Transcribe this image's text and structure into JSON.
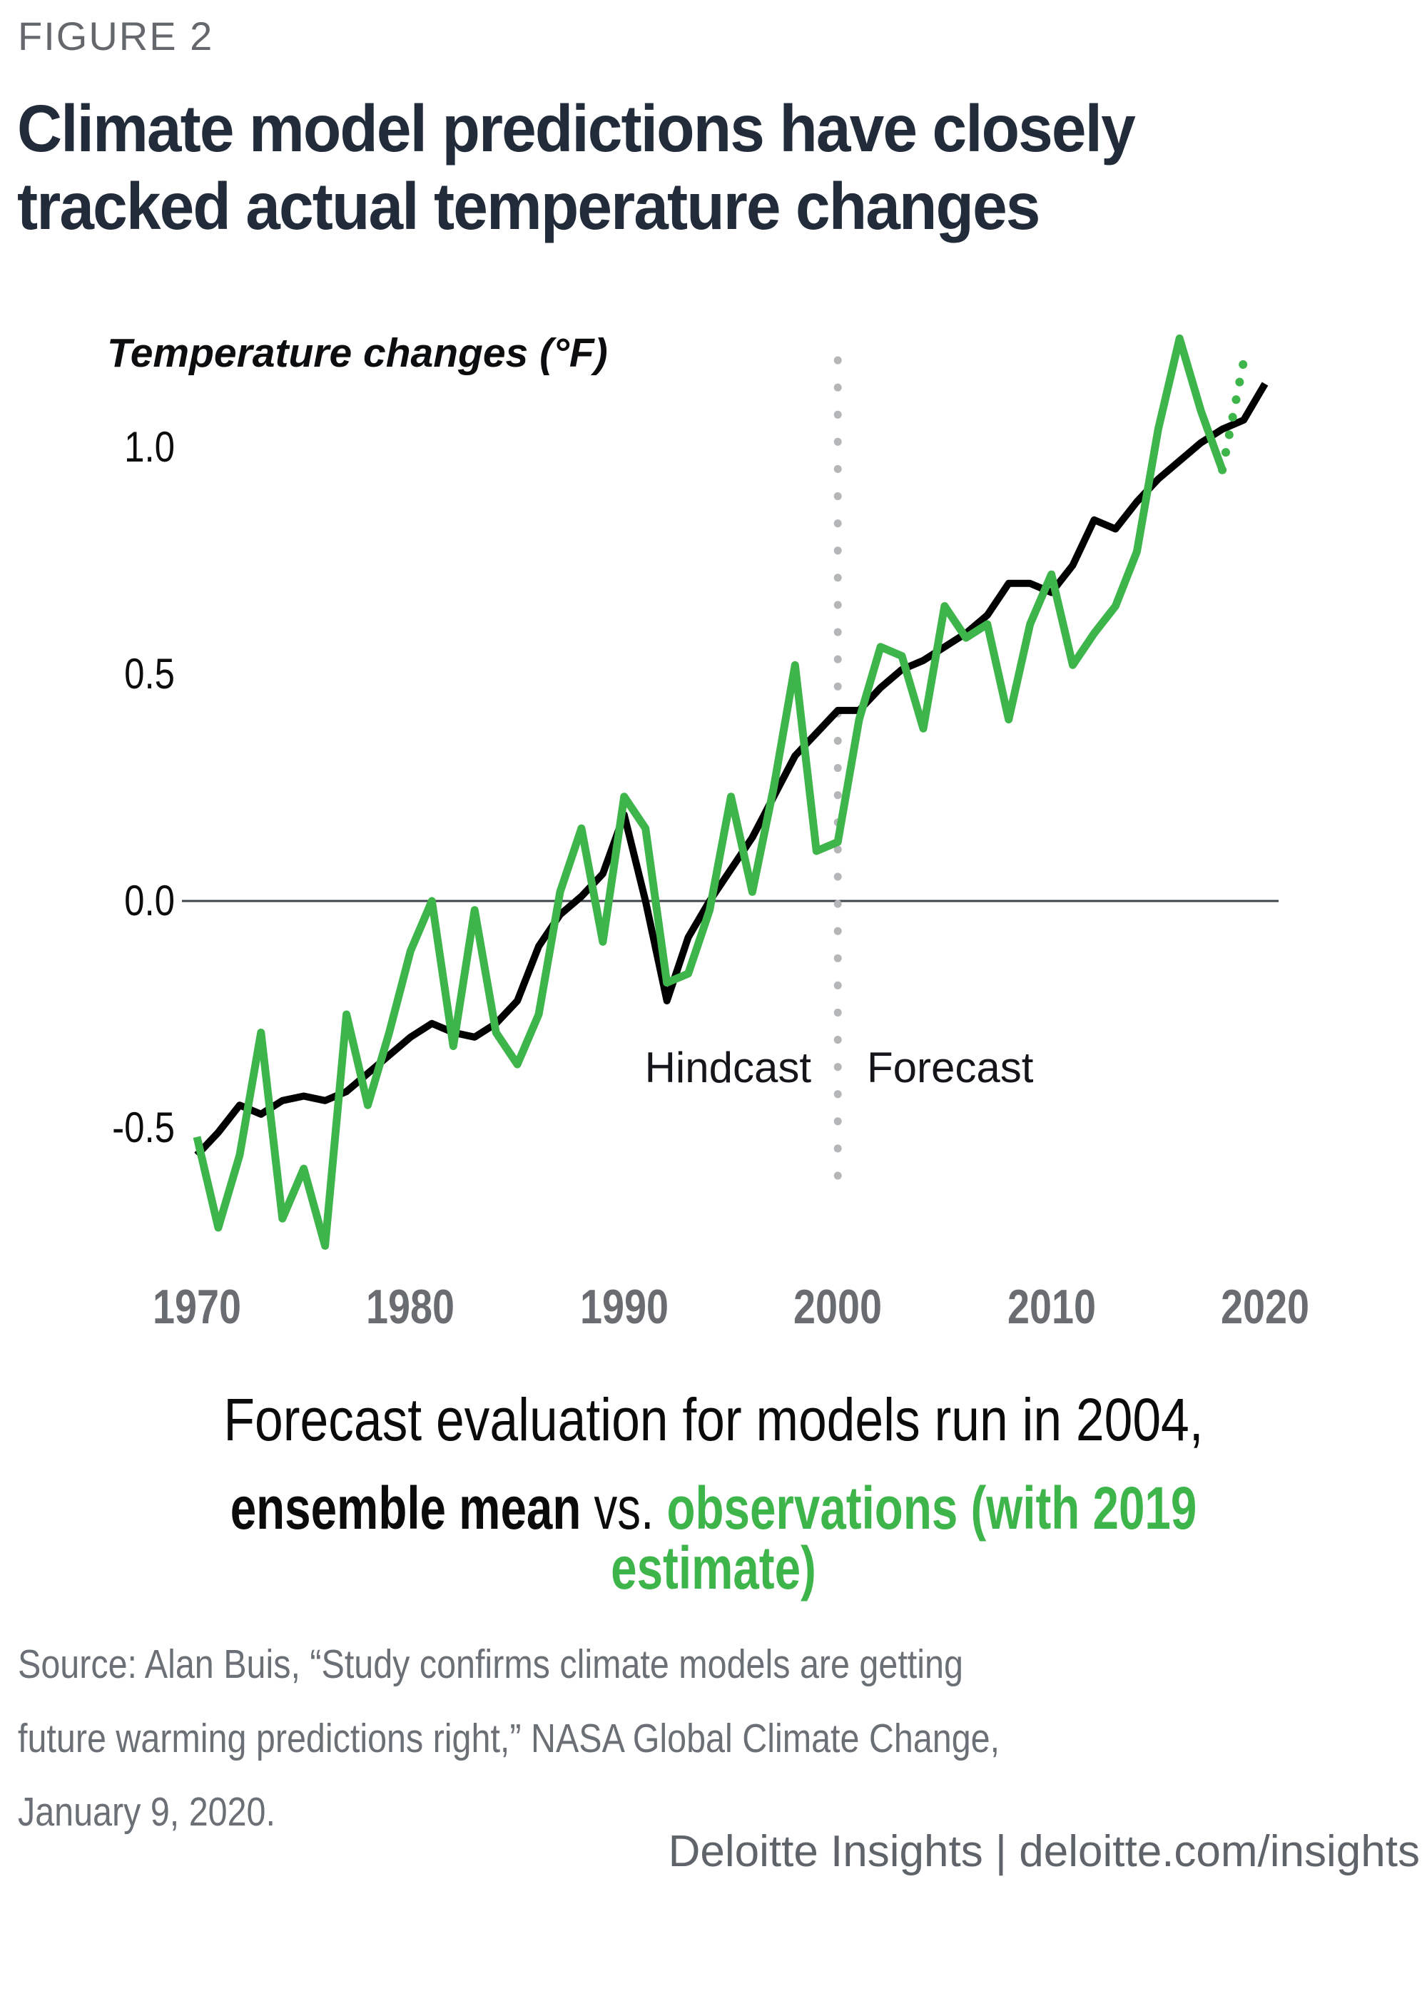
{
  "figure_label": "FIGURE 2",
  "title": {
    "line1": "Climate model predictions have closely",
    "line2": "tracked actual temperature changes"
  },
  "chart_data": {
    "type": "line",
    "ylabel": "Temperature changes (°F)",
    "xlim": [
      1969.5,
      2020.5
    ],
    "ylim": [
      -0.85,
      1.3
    ],
    "grid": "off",
    "y_tick_labels": [
      "1.0",
      "0.5",
      "0.0",
      "-0.5"
    ],
    "y_tick_values": [
      1.0,
      0.5,
      0.0,
      -0.5
    ],
    "x_tick_labels": [
      "1970",
      "1980",
      "1990",
      "2000",
      "2010",
      "2020"
    ],
    "divider_year": 2000,
    "annotations": {
      "hindcast": "Hindcast",
      "forecast": "Forecast"
    },
    "colors": {
      "ensemble_mean": "#000000",
      "observations": "#3eb54b",
      "zero_line": "#3f444c",
      "divider_dots": "#b4b6b8"
    },
    "series": [
      {
        "name": "ensemble mean",
        "color": "#000000",
        "style": "solid",
        "width": 10,
        "x": [
          1970,
          1971,
          1972,
          1973,
          1974,
          1975,
          1976,
          1977,
          1978,
          1979,
          1980,
          1981,
          1982,
          1983,
          1984,
          1985,
          1986,
          1987,
          1988,
          1989,
          1990,
          1991,
          1992,
          1993,
          1994,
          1995,
          1996,
          1997,
          1998,
          1999,
          2000,
          2001,
          2002,
          2003,
          2004,
          2005,
          2006,
          2007,
          2008,
          2009,
          2010,
          2011,
          2012,
          2013,
          2014,
          2015,
          2016,
          2017,
          2018,
          2019,
          2020
        ],
        "values": [
          -0.56,
          -0.51,
          -0.45,
          -0.47,
          -0.44,
          -0.43,
          -0.44,
          -0.42,
          -0.38,
          -0.34,
          -0.3,
          -0.27,
          -0.29,
          -0.3,
          -0.27,
          -0.22,
          -0.1,
          -0.03,
          0.01,
          0.06,
          0.19,
          0.0,
          -0.22,
          -0.08,
          0.0,
          0.07,
          0.14,
          0.23,
          0.32,
          0.37,
          0.42,
          0.42,
          0.47,
          0.51,
          0.53,
          0.56,
          0.59,
          0.63,
          0.7,
          0.7,
          0.68,
          0.74,
          0.84,
          0.82,
          0.88,
          0.93,
          0.97,
          1.01,
          1.04,
          1.06,
          1.14
        ]
      },
      {
        "name": "observations",
        "color": "#3eb54b",
        "style": "solid",
        "width": 11,
        "x": [
          1970,
          1971,
          1972,
          1973,
          1974,
          1975,
          1976,
          1977,
          1978,
          1979,
          1980,
          1981,
          1982,
          1983,
          1984,
          1985,
          1986,
          1987,
          1988,
          1989,
          1990,
          1991,
          1992,
          1993,
          1994,
          1995,
          1996,
          1997,
          1998,
          1999,
          2000,
          2001,
          2002,
          2003,
          2004,
          2005,
          2006,
          2007,
          2008,
          2009,
          2010,
          2011,
          2012,
          2013,
          2014,
          2015,
          2016,
          2017,
          2018
        ],
        "values": [
          -0.52,
          -0.72,
          -0.56,
          -0.29,
          -0.7,
          -0.59,
          -0.76,
          -0.25,
          -0.45,
          -0.29,
          -0.11,
          0.0,
          -0.32,
          -0.02,
          -0.29,
          -0.36,
          -0.25,
          0.02,
          0.16,
          -0.09,
          0.23,
          0.16,
          -0.18,
          -0.16,
          -0.02,
          0.23,
          0.02,
          0.25,
          0.52,
          0.11,
          0.13,
          0.4,
          0.56,
          0.54,
          0.38,
          0.65,
          0.58,
          0.61,
          0.4,
          0.61,
          0.72,
          0.52,
          0.59,
          0.65,
          0.77,
          1.04,
          1.24,
          1.08,
          0.95
        ]
      },
      {
        "name": "2019 estimate",
        "color": "#3eb54b",
        "style": "dotted",
        "width": 12,
        "x": [
          2018,
          2019
        ],
        "values": [
          0.95,
          1.19
        ]
      }
    ]
  },
  "caption": {
    "line1": "Forecast evaluation for models run in 2004,",
    "line2_bold": "ensemble mean",
    "line2_mid": " vs. ",
    "line2_green": "observations (with 2019 estimate)"
  },
  "source": {
    "line1": "Source: Alan Buis, “Study confirms climate models are getting",
    "line2": "future warming predictions right,” NASA Global Climate Change,",
    "line3": "January 9, 2020."
  },
  "footer": "Deloitte Insights | deloitte.com/insights"
}
